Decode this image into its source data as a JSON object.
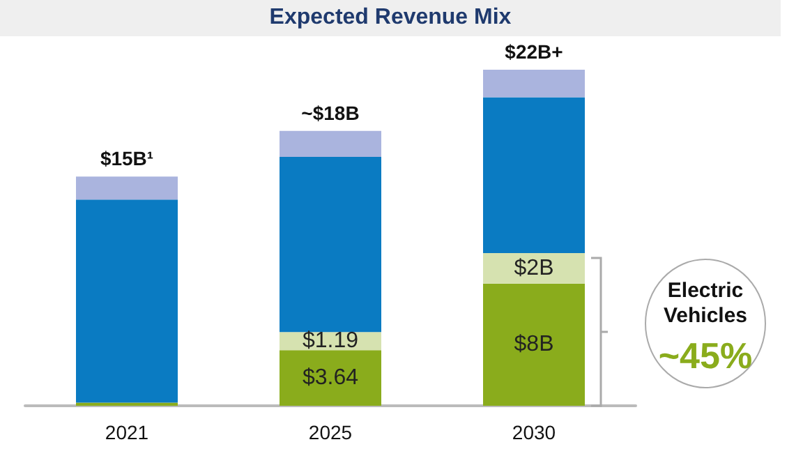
{
  "chart_data": {
    "type": "bar",
    "title": "Expected Revenue Mix",
    "categories": [
      "2021",
      "2025",
      "2030"
    ],
    "stacked": true,
    "ylim": [
      0,
      22
    ],
    "tick_labels": "x",
    "series": [
      {
        "color": "#8aac1c",
        "values": [
          0.2,
          3.64,
          8
        ],
        "value_labels": [
          null,
          "$3.64",
          "$8B"
        ]
      },
      {
        "color": "#d6e2b0",
        "values": [
          0,
          1.19,
          2
        ],
        "value_labels": [
          null,
          "$1.19",
          "$2B"
        ]
      },
      {
        "color": "#0a7bc2",
        "values": [
          13.3,
          11.47,
          10.2
        ]
      },
      {
        "color": "#aab4de",
        "values": [
          1.5,
          1.7,
          1.8
        ]
      }
    ],
    "totals": [
      "$15B¹",
      "~$18B",
      "$22B+"
    ],
    "annotations": [
      "Electric Vehicles",
      "~45%"
    ]
  }
}
